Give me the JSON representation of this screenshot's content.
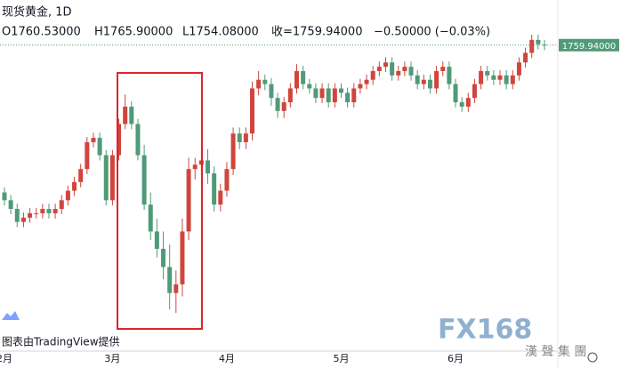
{
  "chart_data": {
    "type": "candlestick",
    "symbol": "现货黄金, 1D",
    "ohlc_text": [
      "O1760.53000",
      "H1765.90000",
      "L1754.08000",
      "收=1759.94000",
      "−0.50000 (−0.03%)"
    ],
    "last_price": {
      "value": 1759.94,
      "label": "1759.94000"
    },
    "footer": "图表由TradingView提供",
    "watermark": [
      "FX168",
      "漢 聲 集 團"
    ],
    "up_color": "#d0453d",
    "down_color": "#4f9a78",
    "ylim": [
      1407,
      1812
    ],
    "categories": [
      "2月",
      null,
      null,
      null,
      null,
      null,
      null,
      null,
      null,
      null,
      null,
      null,
      null,
      null,
      null,
      null,
      null,
      "3月",
      null,
      null,
      null,
      null,
      null,
      null,
      null,
      null,
      null,
      null,
      null,
      null,
      null,
      null,
      null,
      null,
      null,
      "4月",
      null,
      null,
      null,
      null,
      null,
      null,
      null,
      null,
      null,
      null,
      null,
      null,
      null,
      null,
      null,
      null,
      null,
      "5月",
      null,
      null,
      null,
      null,
      null,
      null,
      null,
      null,
      null,
      null,
      null,
      null,
      null,
      null,
      null,
      null,
      null,
      "6月",
      null,
      null,
      null,
      null,
      null,
      null,
      null,
      null,
      null,
      null,
      null,
      null,
      null,
      null
    ],
    "open": [
      1590,
      1581,
      1571,
      1556,
      1561,
      1566,
      1566,
      1571,
      1566,
      1571,
      1581,
      1592,
      1602,
      1617,
      1648,
      1653,
      1633,
      1581,
      1633,
      1669,
      1689,
      1669,
      1633,
      1576,
      1545,
      1525,
      1504,
      1474,
      1484,
      1545,
      1617,
      1622,
      1627,
      1612,
      1576,
      1592,
      1617,
      1658,
      1648,
      1658,
      1710,
      1720,
      1715,
      1699,
      1684,
      1694,
      1710,
      1730,
      1715,
      1710,
      1699,
      1710,
      1694,
      1710,
      1705,
      1694,
      1710,
      1715,
      1720,
      1730,
      1735,
      1740,
      1725,
      1730,
      1735,
      1725,
      1715,
      1720,
      1710,
      1730,
      1735,
      1715,
      1694,
      1689,
      1699,
      1715,
      1730,
      1725,
      1720,
      1725,
      1715,
      1725,
      1740,
      1751,
      1766,
      1760.53
    ],
    "high": [
      1596,
      1587,
      1577,
      1567,
      1572,
      1572,
      1577,
      1577,
      1577,
      1587,
      1598,
      1608,
      1623,
      1654,
      1659,
      1659,
      1639,
      1639,
      1675,
      1703,
      1695,
      1675,
      1645,
      1590,
      1560,
      1545,
      1530,
      1500,
      1560,
      1630,
      1630,
      1635,
      1640,
      1620,
      1600,
      1625,
      1665,
      1665,
      1665,
      1718,
      1730,
      1726,
      1722,
      1705,
      1700,
      1716,
      1738,
      1736,
      1721,
      1716,
      1716,
      1716,
      1716,
      1716,
      1711,
      1716,
      1721,
      1726,
      1736,
      1741,
      1746,
      1746,
      1736,
      1741,
      1741,
      1731,
      1726,
      1726,
      1736,
      1741,
      1741,
      1721,
      1700,
      1705,
      1721,
      1736,
      1736,
      1731,
      1731,
      1731,
      1731,
      1746,
      1757,
      1772,
      1772,
      1765.9
    ],
    "low": [
      1575,
      1565,
      1550,
      1550,
      1555,
      1560,
      1560,
      1560,
      1560,
      1565,
      1575,
      1586,
      1596,
      1611,
      1642,
      1627,
      1575,
      1575,
      1627,
      1663,
      1663,
      1627,
      1570,
      1535,
      1515,
      1490,
      1455,
      1451,
      1470,
      1535,
      1605,
      1610,
      1600,
      1568,
      1568,
      1585,
      1610,
      1640,
      1640,
      1650,
      1702,
      1708,
      1690,
      1676,
      1676,
      1688,
      1704,
      1709,
      1704,
      1693,
      1693,
      1688,
      1688,
      1699,
      1688,
      1688,
      1704,
      1709,
      1714,
      1724,
      1729,
      1719,
      1719,
      1724,
      1719,
      1709,
      1709,
      1704,
      1704,
      1724,
      1709,
      1688,
      1683,
      1683,
      1693,
      1709,
      1719,
      1714,
      1714,
      1709,
      1709,
      1719,
      1734,
      1745,
      1755,
      1754.08
    ],
    "close": [
      1581,
      1571,
      1556,
      1561,
      1566,
      1566,
      1571,
      1566,
      1571,
      1581,
      1592,
      1602,
      1617,
      1648,
      1653,
      1633,
      1581,
      1633,
      1669,
      1689,
      1669,
      1633,
      1576,
      1545,
      1525,
      1504,
      1474,
      1484,
      1545,
      1617,
      1622,
      1627,
      1612,
      1576,
      1592,
      1617,
      1658,
      1648,
      1658,
      1710,
      1720,
      1715,
      1699,
      1684,
      1694,
      1710,
      1730,
      1715,
      1710,
      1699,
      1710,
      1694,
      1710,
      1705,
      1694,
      1710,
      1715,
      1720,
      1730,
      1735,
      1740,
      1725,
      1730,
      1735,
      1725,
      1715,
      1720,
      1710,
      1730,
      1735,
      1715,
      1694,
      1689,
      1699,
      1715,
      1730,
      1725,
      1720,
      1725,
      1715,
      1725,
      1740,
      1751,
      1766,
      1761,
      1759.94
    ]
  }
}
